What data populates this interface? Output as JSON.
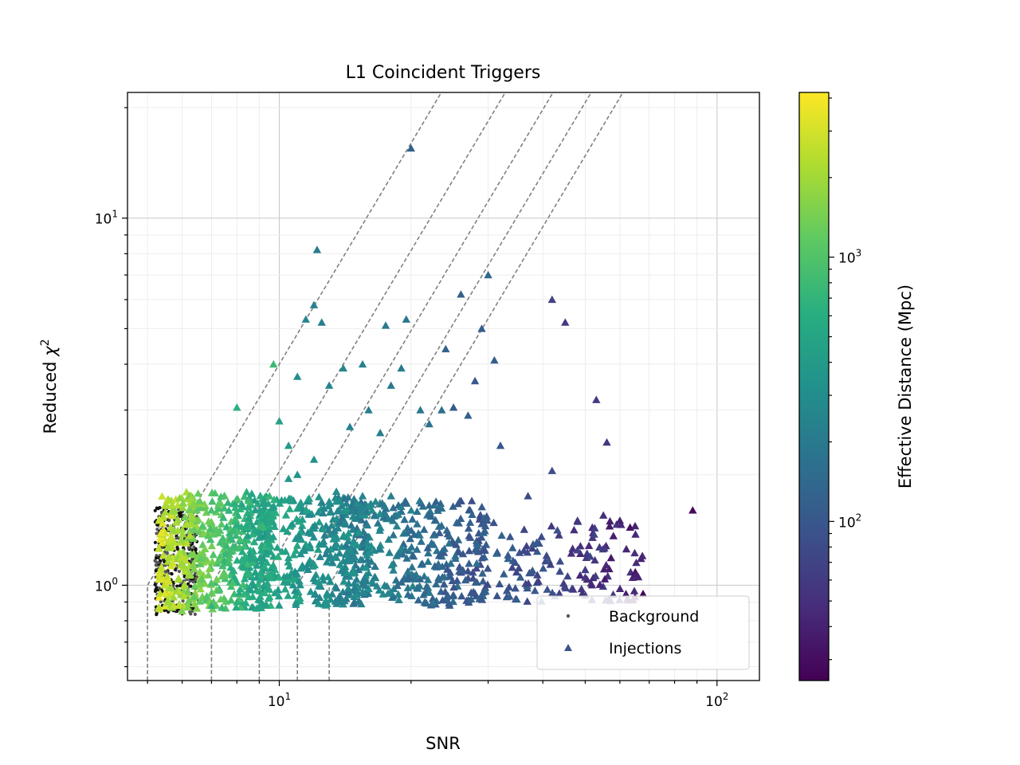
{
  "chart_data": {
    "type": "scatter",
    "title": "L1 Coincident Triggers",
    "xlabel": "SNR",
    "ylabel_text": "Reduced ",
    "ylabel_symbol": "χ",
    "ylabel_sup": "2",
    "xscale": "log",
    "yscale": "log",
    "xlim": [
      4.5,
      125
    ],
    "ylim": [
      0.55,
      22
    ],
    "grid": true,
    "x_ticks": [
      {
        "base": "10",
        "exp": "1",
        "value": 10
      },
      {
        "base": "10",
        "exp": "2",
        "value": 100
      }
    ],
    "y_ticks": [
      {
        "base": "10",
        "exp": "0",
        "value": 1
      },
      {
        "base": "10",
        "exp": "1",
        "value": 10
      }
    ],
    "legend": {
      "placement": "lower-right",
      "entries": [
        {
          "key": "background",
          "label": "Background",
          "marker": "dot",
          "color": "#555555"
        },
        {
          "key": "injections",
          "label": "Injections",
          "marker": "triangle",
          "color": "#3b528b"
        }
      ]
    },
    "colorbar": {
      "label": "Effective Distance (Mpc)",
      "scale": "log",
      "range": [
        25,
        4200
      ],
      "ticks": [
        {
          "base": "10",
          "exp": "2",
          "value": 100
        },
        {
          "base": "10",
          "exp": "3",
          "value": 1000
        }
      ],
      "colormap": "viridis"
    },
    "threshold_curves": [
      {
        "snr_cut": 5.0
      },
      {
        "snr_cut": 7.0
      },
      {
        "snr_cut": 9.0
      },
      {
        "snr_cut": 11.0
      },
      {
        "snr_cut": 13.0
      }
    ],
    "series": [
      {
        "name": "Injections",
        "marker": "triangle",
        "points": [
          [
            20.0,
            15.5,
            120
          ],
          [
            12.2,
            8.2,
            200
          ],
          [
            8.0,
            3.05,
            650
          ],
          [
            9.7,
            4.0,
            800
          ],
          [
            11.5,
            5.3,
            260
          ],
          [
            12.0,
            5.8,
            240
          ],
          [
            12.5,
            5.2,
            220
          ],
          [
            17.5,
            5.1,
            200
          ],
          [
            19.5,
            5.3,
            180
          ],
          [
            30.0,
            7.0,
            140
          ],
          [
            26.0,
            6.2,
            120
          ],
          [
            29.0,
            5.0,
            110
          ],
          [
            42.0,
            6.0,
            70
          ],
          [
            45.0,
            5.2,
            60
          ],
          [
            24.0,
            4.4,
            120
          ],
          [
            31.0,
            4.1,
            110
          ],
          [
            28.0,
            3.6,
            100
          ],
          [
            53.0,
            3.2,
            60
          ],
          [
            56.0,
            2.45,
            55
          ],
          [
            27.0,
            2.9,
            120
          ],
          [
            25.0,
            3.05,
            110
          ],
          [
            10.5,
            2.4,
            400
          ],
          [
            10.0,
            2.8,
            450
          ],
          [
            11.0,
            3.7,
            300
          ],
          [
            14.0,
            3.9,
            260
          ],
          [
            15.5,
            4.0,
            240
          ],
          [
            16.0,
            3.0,
            220
          ],
          [
            18.0,
            3.5,
            200
          ],
          [
            19.0,
            3.9,
            200
          ],
          [
            21.0,
            3.0,
            180
          ],
          [
            22.0,
            2.75,
            170
          ],
          [
            23.5,
            3.0,
            160
          ],
          [
            13.0,
            3.5,
            260
          ],
          [
            14.5,
            2.7,
            240
          ],
          [
            17.0,
            2.6,
            220
          ],
          [
            32.0,
            2.4,
            100
          ],
          [
            42.0,
            2.05,
            80
          ],
          [
            22.0,
            1.65,
            140
          ],
          [
            37.0,
            1.75,
            80
          ],
          [
            88.0,
            1.6,
            28
          ],
          [
            65.0,
            1.45,
            40
          ],
          [
            60.0,
            1.5,
            40
          ],
          [
            55.0,
            1.55,
            50
          ],
          [
            48.0,
            1.5,
            55
          ],
          [
            65.0,
            1.07,
            40
          ],
          [
            50.0,
            1.05,
            55
          ],
          [
            28.0,
            0.95,
            90
          ],
          [
            25.0,
            0.94,
            110
          ],
          [
            8.0,
            0.9,
            650
          ],
          [
            9.0,
            0.87,
            500
          ],
          [
            7.0,
            0.88,
            700
          ],
          [
            6.0,
            0.85,
            1500
          ],
          [
            7.0,
            1.6,
            900
          ],
          [
            7.5,
            1.75,
            1000
          ],
          [
            8.5,
            1.7,
            800
          ],
          [
            9.5,
            1.75,
            750
          ],
          [
            13.5,
            1.8,
            300
          ],
          [
            15.5,
            1.75,
            250
          ],
          [
            18.0,
            1.75,
            220
          ],
          [
            12.0,
            2.2,
            350
          ],
          [
            11.0,
            2.0,
            350
          ],
          [
            10.5,
            1.95,
            380
          ]
        ]
      }
    ],
    "clusters": [
      {
        "series": "Injections",
        "x_range": [
          5.3,
          9.5
        ],
        "y_range": [
          0.86,
          1.8
        ],
        "dist_range": [
          400,
          3000
        ],
        "count": 520
      },
      {
        "series": "Injections",
        "x_range": [
          9.0,
          16.0
        ],
        "y_range": [
          0.88,
          1.75
        ],
        "dist_range": [
          180,
          600
        ],
        "count": 360
      },
      {
        "series": "Injections",
        "x_range": [
          14.0,
          30.0
        ],
        "y_range": [
          0.88,
          1.7
        ],
        "dist_range": [
          90,
          300
        ],
        "count": 340
      },
      {
        "series": "Injections",
        "x_range": [
          28.0,
          68.0
        ],
        "y_range": [
          0.9,
          1.5
        ],
        "dist_range": [
          35,
          130
        ],
        "count": 150
      },
      {
        "series": "Background",
        "x_range": [
          5.2,
          6.5
        ],
        "y_range": [
          0.83,
          1.65
        ],
        "dist_range": [
          0,
          0
        ],
        "count": 380
      }
    ]
  }
}
